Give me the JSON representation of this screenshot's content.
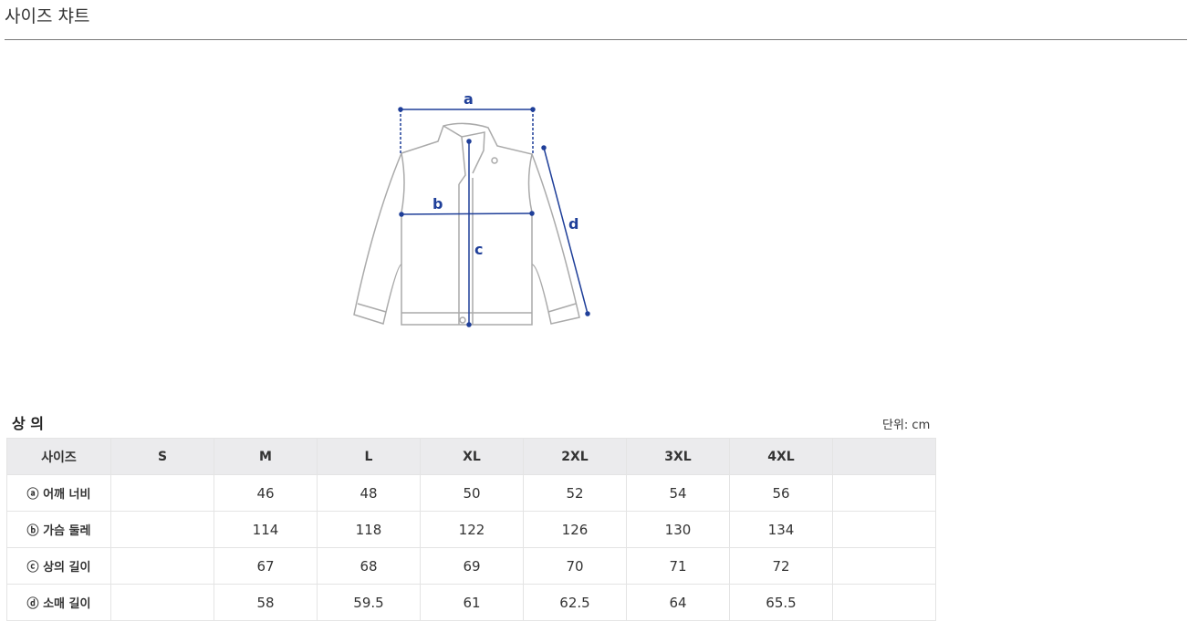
{
  "title": "사이즈 챠트",
  "diagram": {
    "labels": [
      "a",
      "b",
      "c",
      "d"
    ],
    "line_color": "#1f3f99"
  },
  "section": {
    "title": "상 의",
    "unit": "단위: cm"
  },
  "table": {
    "headers": [
      "사이즈",
      "S",
      "M",
      "L",
      "XL",
      "2XL",
      "3XL",
      "4XL",
      ""
    ],
    "rows": [
      [
        "ⓐ 어깨 너비",
        "",
        "46",
        "48",
        "50",
        "52",
        "54",
        "56",
        ""
      ],
      [
        "ⓑ 가슴 둘레",
        "",
        "114",
        "118",
        "122",
        "126",
        "130",
        "134",
        ""
      ],
      [
        "ⓒ 상의 길이",
        "",
        "67",
        "68",
        "69",
        "70",
        "71",
        "72",
        ""
      ],
      [
        "ⓓ 소매 길이",
        "",
        "58",
        "59.5",
        "61",
        "62.5",
        "64",
        "65.5",
        ""
      ]
    ]
  }
}
